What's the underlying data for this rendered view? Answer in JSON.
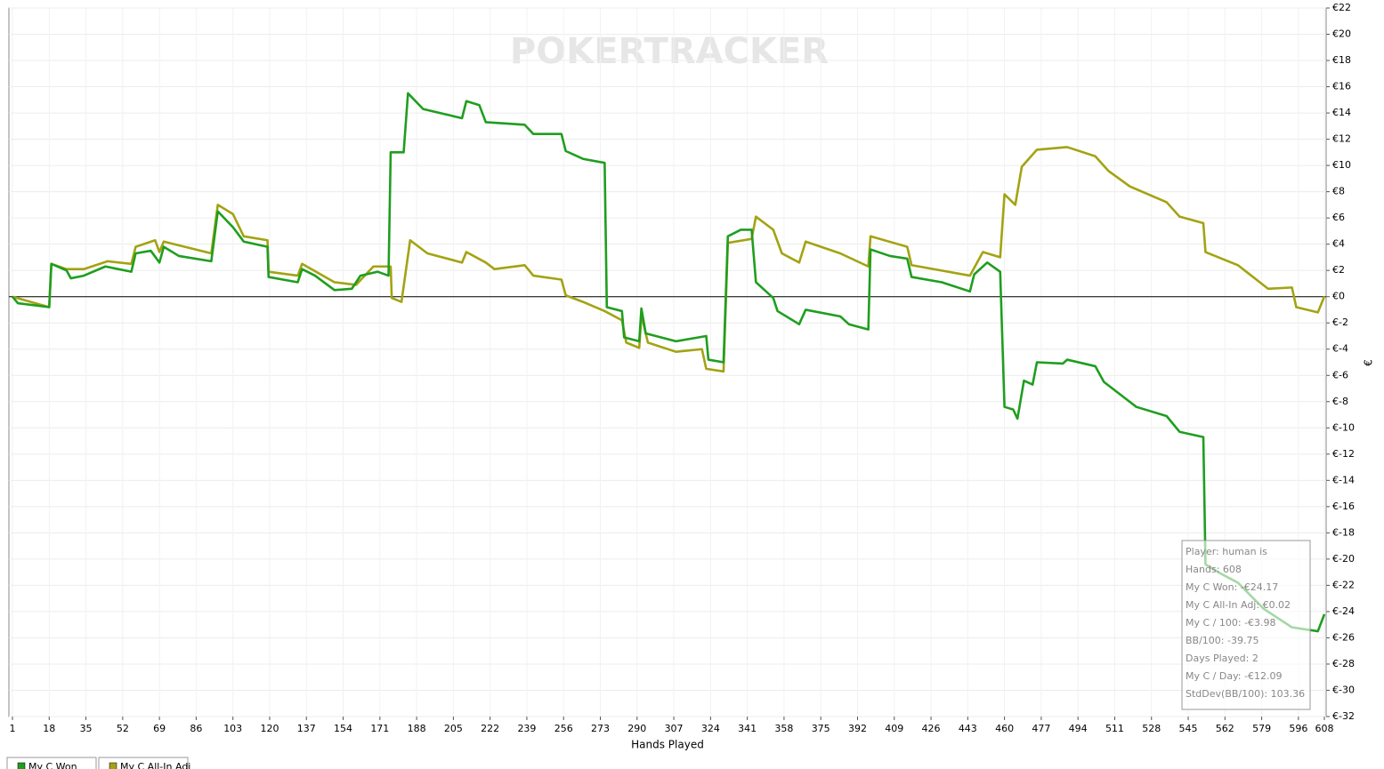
{
  "chart_data": {
    "type": "line",
    "watermark": "POKERTRACKER",
    "xlabel": "Hands Played",
    "ylabel": "€",
    "xlim": [
      1,
      608
    ],
    "xticks": [
      1,
      18,
      35,
      52,
      69,
      86,
      103,
      120,
      137,
      154,
      171,
      188,
      205,
      222,
      239,
      256,
      273,
      290,
      307,
      324,
      341,
      358,
      375,
      392,
      409,
      426,
      443,
      460,
      477,
      494,
      511,
      528,
      545,
      562,
      579,
      596,
      608
    ],
    "ylim": [
      -32,
      22
    ],
    "yticks": [
      {
        "value": -32,
        "label": "€-32"
      },
      {
        "value": -30,
        "label": "€-30"
      },
      {
        "value": -28,
        "label": "€-28"
      },
      {
        "value": -26,
        "label": "€-26"
      },
      {
        "value": -24,
        "label": "€-24"
      },
      {
        "value": -22,
        "label": "€-22"
      },
      {
        "value": -20,
        "label": "€-20"
      },
      {
        "value": -18,
        "label": "€-18"
      },
      {
        "value": -16,
        "label": "€-16"
      },
      {
        "value": -14,
        "label": "€-14"
      },
      {
        "value": -12,
        "label": "€-12"
      },
      {
        "value": -10,
        "label": "€-10"
      },
      {
        "value": -8,
        "label": "€-8"
      },
      {
        "value": -6,
        "label": "€-6"
      },
      {
        "value": -4,
        "label": "€-4"
      },
      {
        "value": -2,
        "label": "€-2"
      },
      {
        "value": 0,
        "label": "€0"
      },
      {
        "value": 2,
        "label": "€2"
      },
      {
        "value": 4,
        "label": "€4"
      },
      {
        "value": 6,
        "label": "€6"
      },
      {
        "value": 8,
        "label": "€8"
      },
      {
        "value": 10,
        "label": "€10"
      },
      {
        "value": 12,
        "label": "€12"
      },
      {
        "value": 14,
        "label": "€14"
      },
      {
        "value": 16,
        "label": "€16"
      },
      {
        "value": 18,
        "label": "€18"
      },
      {
        "value": 20,
        "label": "€20"
      },
      {
        "value": 22,
        "label": "€22"
      }
    ],
    "grid": true,
    "hline": 0,
    "series": [
      {
        "name": "My C Won",
        "color": "#1f9e1f",
        "x": [
          1,
          3.5,
          18,
          19,
          26,
          28,
          34,
          44,
          56,
          58,
          65,
          69,
          71,
          78,
          93,
          96,
          103,
          108,
          119,
          119.5,
          133,
          135,
          141,
          150,
          158,
          162,
          170,
          175,
          176,
          182,
          184,
          191,
          209,
          211,
          217,
          220,
          238,
          242,
          255,
          257,
          265,
          275,
          276,
          283,
          284,
          291,
          292,
          294,
          308,
          322,
          323,
          330,
          332,
          338,
          343,
          345,
          353,
          355,
          365,
          368,
          384,
          388,
          397,
          398,
          407,
          415,
          417,
          431,
          444,
          446,
          452,
          458,
          460,
          464,
          466,
          469,
          473,
          475,
          487,
          489,
          502,
          506,
          521,
          535,
          541,
          552,
          553,
          560,
          568,
          580,
          593,
          605,
          608
        ],
        "values": [
          0,
          -0.5,
          -0.8,
          2.5,
          2,
          1.4,
          1.6,
          2.3,
          1.9,
          3.3,
          3.5,
          2.6,
          3.8,
          3.1,
          2.7,
          6.5,
          5.3,
          4.2,
          3.8,
          1.5,
          1.1,
          2.1,
          1.6,
          0.5,
          0.6,
          1.6,
          1.9,
          1.6,
          11,
          11,
          15.5,
          14.3,
          13.6,
          14.9,
          14.6,
          13.3,
          13.1,
          12.4,
          12.4,
          11.1,
          10.5,
          10.2,
          -0.8,
          -1.1,
          -3.1,
          -3.4,
          -0.9,
          -2.8,
          -3.4,
          -3,
          -4.8,
          -5,
          4.6,
          5.1,
          5.1,
          1.1,
          -0.1,
          -1.1,
          -2.1,
          -1,
          -1.5,
          -2.1,
          -2.5,
          3.6,
          3.1,
          2.9,
          1.5,
          1.1,
          0.4,
          1.7,
          2.6,
          1.9,
          -8.4,
          -8.6,
          -9.3,
          -6.4,
          -6.7,
          -5,
          -5.1,
          -4.8,
          -5.3,
          -6.5,
          -8.4,
          -9.1,
          -10.3,
          -10.7,
          -20.4,
          -21.1,
          -21.8,
          -23.8,
          -25.2,
          -25.5,
          -24.2
        ]
      },
      {
        "name": "My C All-In Adj",
        "color": "#a3a313",
        "x": [
          1,
          18,
          19,
          26,
          34,
          45,
          56,
          58,
          67,
          69,
          71,
          93,
          96,
          103,
          108,
          119,
          119.5,
          133,
          135,
          150,
          160,
          168,
          176,
          176.5,
          181,
          185,
          193,
          209,
          211,
          220,
          224,
          238,
          242,
          255,
          257,
          265,
          275,
          283,
          285,
          291,
          292,
          295,
          308,
          320,
          322,
          330,
          332,
          343,
          345,
          353,
          357,
          365,
          368,
          384,
          397,
          398,
          415,
          417,
          444,
          450,
          458,
          460,
          465,
          468,
          475,
          489,
          502,
          508,
          518,
          535,
          541,
          552,
          553,
          568,
          582,
          593,
          595,
          605,
          608
        ],
        "values": [
          0,
          -0.8,
          2.5,
          2.1,
          2.1,
          2.7,
          2.5,
          3.8,
          4.3,
          3.4,
          4.2,
          3.3,
          7,
          6.3,
          4.6,
          4.3,
          1.9,
          1.6,
          2.5,
          1.1,
          0.9,
          2.3,
          2.3,
          -0.1,
          -0.4,
          4.3,
          3.3,
          2.6,
          3.4,
          2.6,
          2.1,
          2.4,
          1.6,
          1.3,
          0.1,
          -0.4,
          -1.1,
          -1.8,
          -3.5,
          -3.9,
          -1.4,
          -3.5,
          -4.2,
          -4,
          -5.5,
          -5.7,
          4.1,
          4.4,
          6.1,
          5.1,
          3.3,
          2.6,
          4.2,
          3.3,
          2.3,
          4.6,
          3.8,
          2.4,
          1.6,
          3.4,
          3,
          7.8,
          7,
          9.9,
          11.2,
          11.4,
          10.7,
          9.6,
          8.4,
          7.2,
          6.1,
          5.6,
          3.4,
          2.4,
          0.6,
          0.7,
          -0.8,
          -1.2,
          0.02
        ]
      }
    ],
    "tooltip": [
      "Player: human is",
      "Hands: 608",
      "My C Won: -€24.17",
      "My C All-In Adj: €0.02",
      "My C / 100: -€3.98",
      "BB/100: -39.75",
      "Days Played: 2",
      "My C / Day: -€12.09",
      "StdDev(BB/100): 103.36"
    ]
  }
}
